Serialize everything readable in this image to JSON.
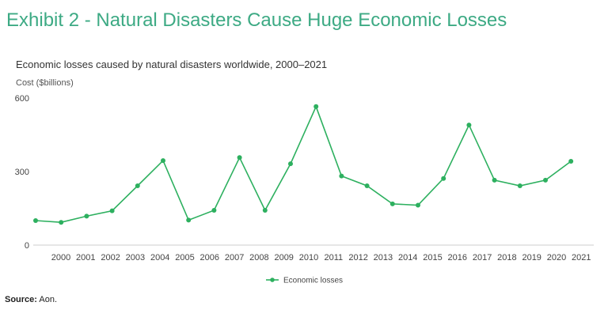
{
  "header": {
    "title": "Exhibit 2 - Natural Disasters Cause Huge Economic Losses"
  },
  "footer": {
    "source_label": "Source:",
    "source_text": "Aon."
  },
  "colors": {
    "title": "#3daa84",
    "series": "#2db05f"
  },
  "chart_data": {
    "type": "line",
    "title": "Economic losses caused by natural disasters worldwide, 2000–2021",
    "ylabel": "Cost ($billions)",
    "xlabel": "",
    "ylim": [
      0,
      600
    ],
    "yticks": [
      0,
      300,
      600
    ],
    "x_tick_labels": [
      "2000",
      "2001",
      "2002",
      "2003",
      "2004",
      "2005",
      "2006",
      "2007",
      "2008",
      "2009",
      "2010",
      "2011",
      "2012",
      "2013",
      "2014",
      "2015",
      "2016",
      "2017",
      "2018",
      "2019",
      "2020",
      "2021"
    ],
    "grid": false,
    "legend": "bottom-center",
    "series": [
      {
        "name": "Economic losses",
        "values": [
          100,
          93,
          118,
          140,
          242,
          345,
          102,
          142,
          357,
          142,
          332,
          565,
          282,
          242,
          168,
          163,
          272,
          490,
          265,
          242,
          265,
          342
        ]
      }
    ]
  }
}
